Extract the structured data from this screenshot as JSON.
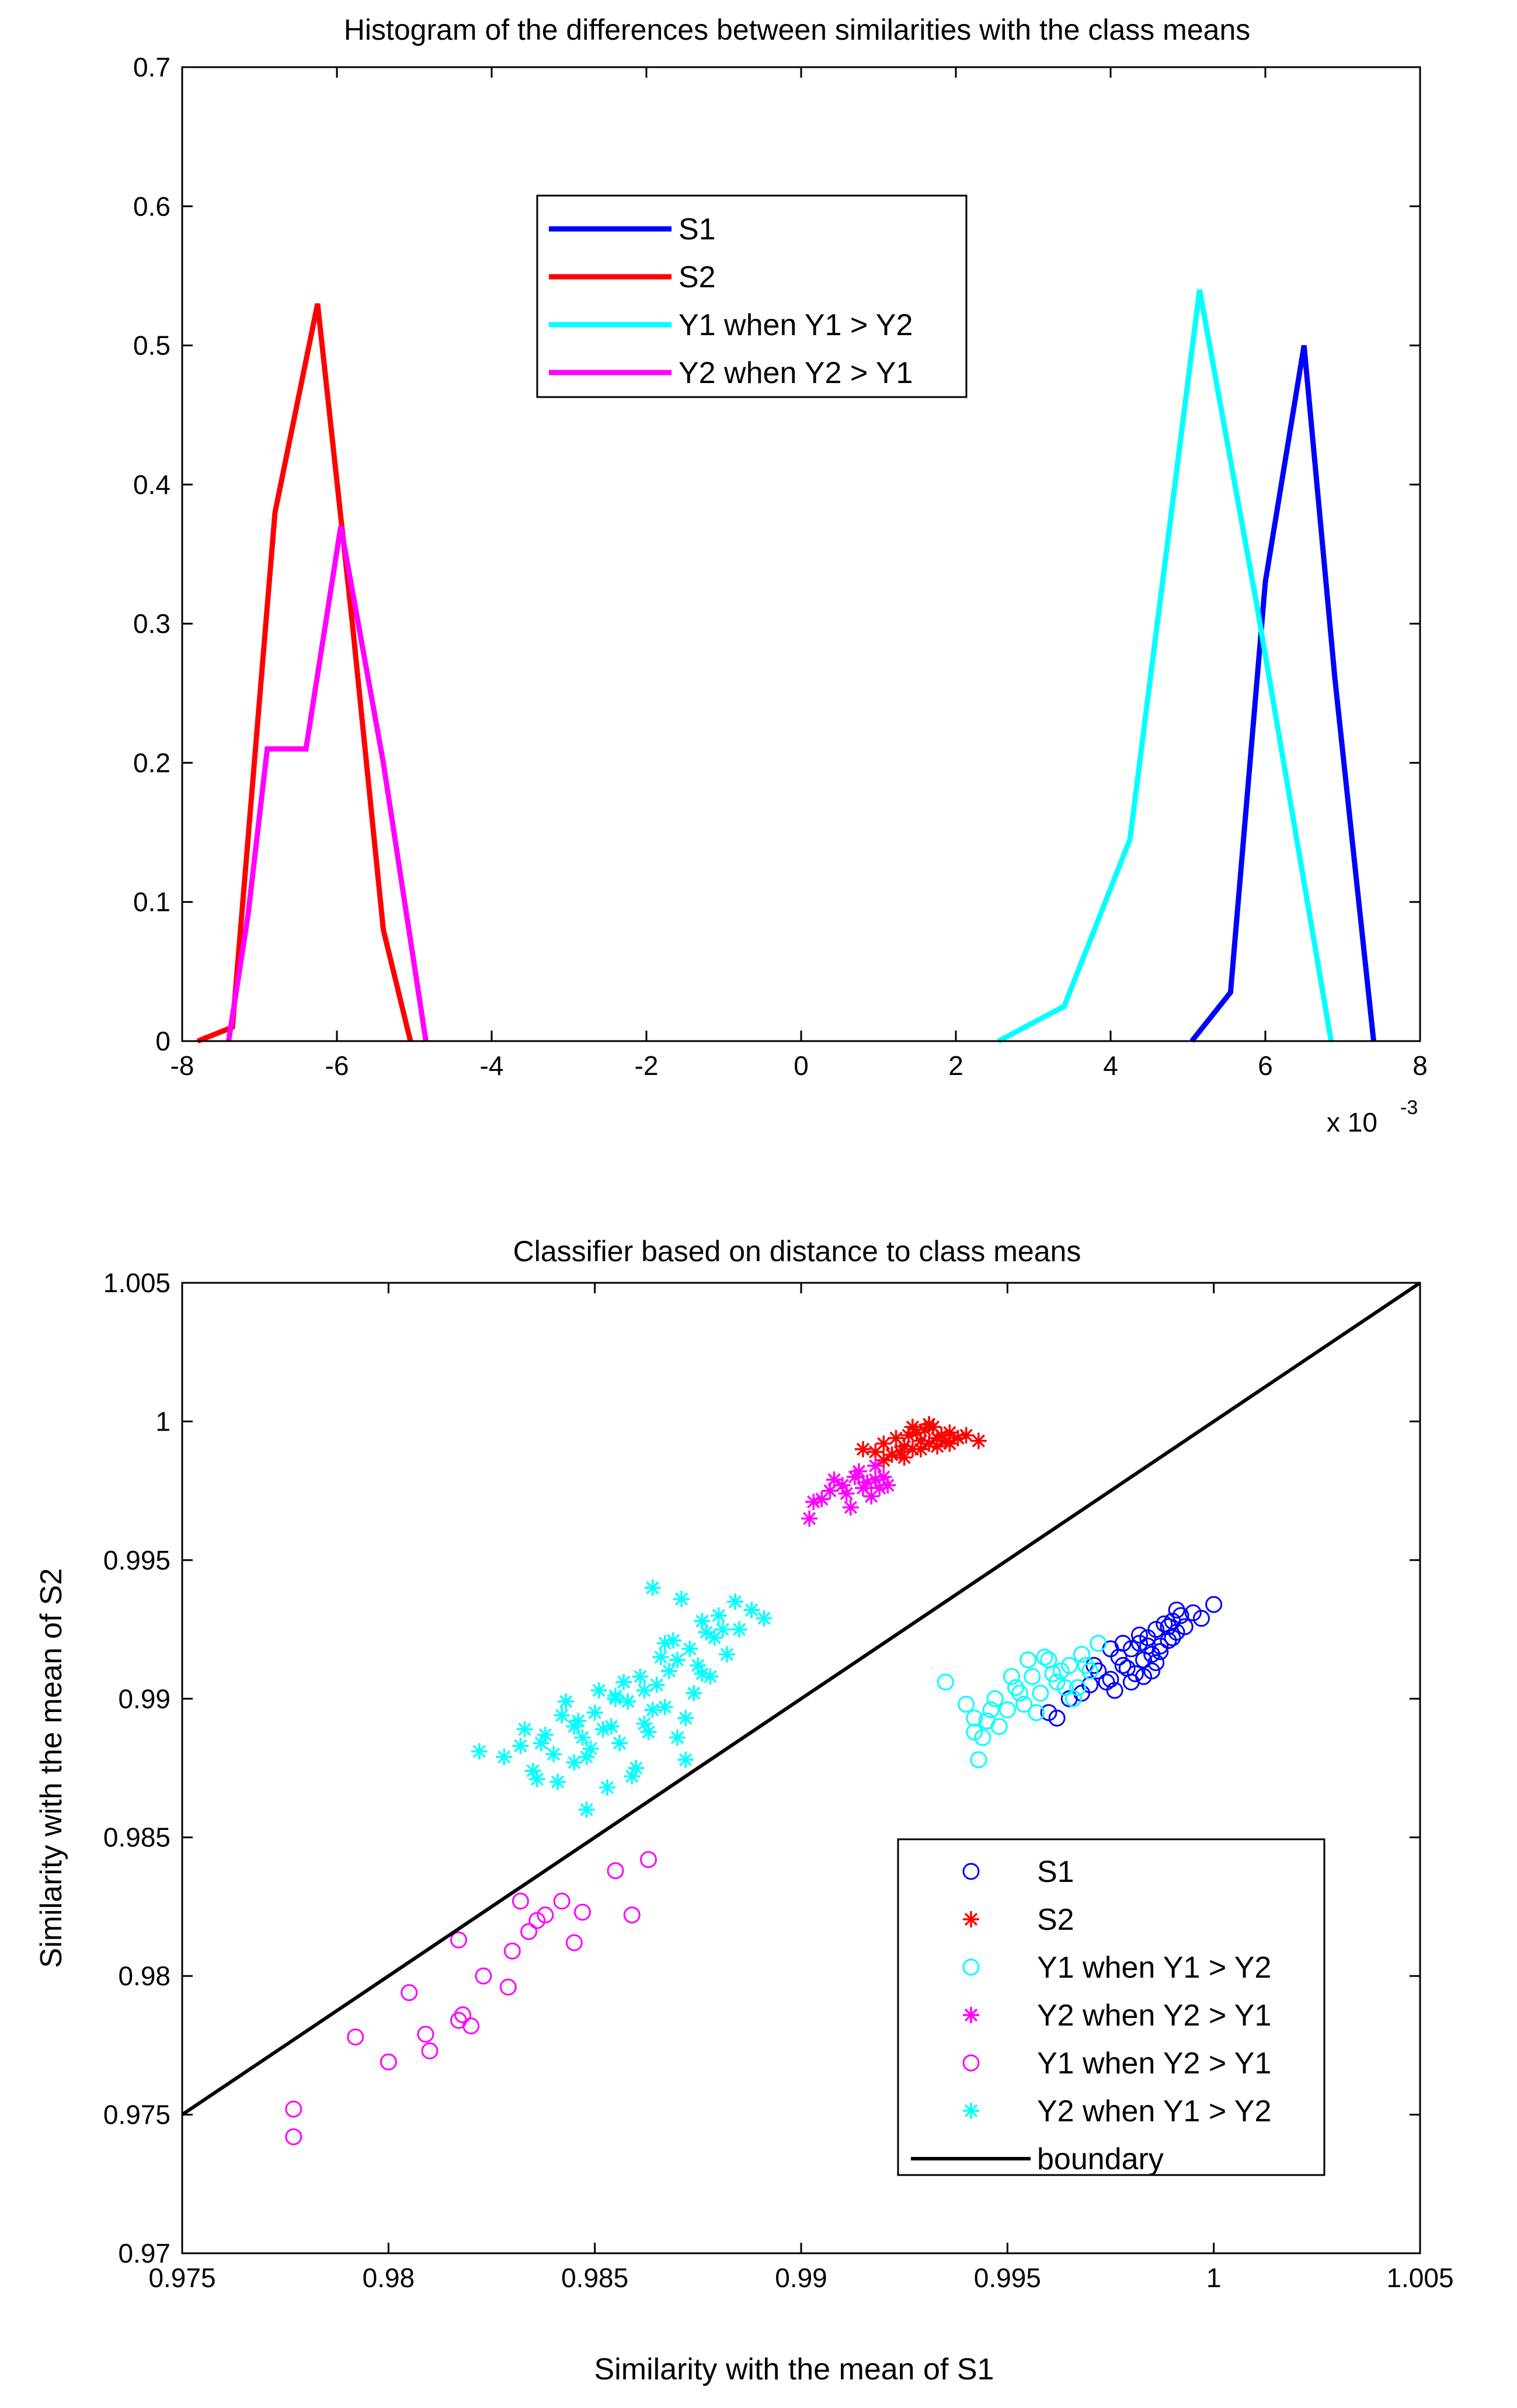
{
  "figure": {
    "background": "#ffffff"
  },
  "chart_data": [
    {
      "type": "line",
      "title": "Histogram of the differences between similarities with the class means",
      "xlabel": "",
      "ylabel": "",
      "x_exponent_label": "x 10",
      "x_exponent_power": "-3",
      "xlim": [
        -8,
        8
      ],
      "ylim": [
        0,
        0.7
      ],
      "xticks": [
        "-8",
        "-6",
        "-4",
        "-2",
        "0",
        "2",
        "4",
        "6",
        "8"
      ],
      "xtick_values": [
        -8,
        -6,
        -4,
        -2,
        0,
        2,
        4,
        6,
        8
      ],
      "yticks": [
        "0",
        "0.1",
        "0.2",
        "0.3",
        "0.4",
        "0.5",
        "0.6",
        "0.7"
      ],
      "ytick_values": [
        0,
        0.1,
        0.2,
        0.3,
        0.4,
        0.5,
        0.6,
        0.7
      ],
      "legend_position": "upper-center",
      "series": [
        {
          "name": "S1",
          "color": "#0000ff",
          "x": [
            5.05,
            5.55,
            6.0,
            6.5,
            6.9,
            7.4
          ],
          "y": [
            0.0,
            0.035,
            0.33,
            0.5,
            0.26,
            0.0
          ]
        },
        {
          "name": "S2",
          "color": "#ff0000",
          "x": [
            -7.8,
            -7.35,
            -6.8,
            -6.25,
            -5.8,
            -5.4,
            -5.05
          ],
          "y": [
            0.0,
            0.01,
            0.38,
            0.53,
            0.3,
            0.08,
            0.0
          ]
        },
        {
          "name": "Y1 when Y1 > Y2",
          "color": "#00ffff",
          "x": [
            2.55,
            3.4,
            4.25,
            5.15,
            5.9,
            6.85
          ],
          "y": [
            0.0,
            0.025,
            0.145,
            0.54,
            0.31,
            0.0
          ]
        },
        {
          "name": "Y2 when Y2 > Y1",
          "color": "#ff00ff",
          "x": [
            -7.4,
            -7.15,
            -6.9,
            -6.4,
            -5.95,
            -5.4,
            -4.85
          ],
          "y": [
            0.0,
            0.09,
            0.21,
            0.21,
            0.37,
            0.2,
            0.0
          ]
        }
      ]
    },
    {
      "type": "scatter",
      "title": "Classifier based on distance to class means",
      "xlabel": "Similarity with the mean of S1",
      "ylabel": "Similarity with the mean of S2",
      "xlim": [
        0.975,
        1.005
      ],
      "ylim": [
        0.97,
        1.005
      ],
      "xticks": [
        "0.975",
        "0.98",
        "0.985",
        "0.99",
        "0.995",
        "1",
        "1.005"
      ],
      "xtick_values": [
        0.975,
        0.98,
        0.985,
        0.99,
        0.995,
        1.0,
        1.005
      ],
      "yticks": [
        "0.97",
        "0.975",
        "0.98",
        "0.985",
        "0.99",
        "0.995",
        "1",
        "1.005"
      ],
      "ytick_values": [
        0.97,
        0.975,
        0.98,
        0.985,
        0.99,
        0.995,
        1.0,
        1.005
      ],
      "legend_position": "lower-right",
      "series": [
        {
          "name": "S1",
          "marker": "circle",
          "color": "#0000ff",
          "x": [
            0.996,
            0.9965,
            0.997,
            0.9972,
            0.9975,
            0.9977,
            0.9978,
            0.998,
            0.9981,
            0.9982,
            0.9983,
            0.9984,
            0.9985,
            0.9986,
            0.9987,
            0.9988,
            0.9989,
            0.999,
            0.9991,
            0.9992,
            0.9993,
            0.9995,
            0.9997,
            1.0,
            0.9976,
            0.9979,
            0.9983,
            0.9987,
            0.9974,
            0.9968,
            0.9962,
            0.9978,
            0.9982,
            0.9986,
            0.999,
            0.998,
            0.9985,
            0.9989,
            0.9971,
            0.9975,
            0.9991,
            0.9984
          ],
          "y": [
            0.9895,
            0.99,
            0.9905,
            0.991,
            0.9907,
            0.9915,
            0.9912,
            0.9918,
            0.9909,
            0.992,
            0.9914,
            0.9922,
            0.9916,
            0.9925,
            0.9919,
            0.9927,
            0.9921,
            0.9928,
            0.9924,
            0.993,
            0.9926,
            0.9931,
            0.9929,
            0.9934,
            0.9903,
            0.9911,
            0.9908,
            0.9917,
            0.9906,
            0.9902,
            0.9893,
            0.992,
            0.9923,
            0.9913,
            0.9922,
            0.9906,
            0.991,
            0.9926,
            0.9912,
            0.9918,
            0.9932,
            0.9919
          ]
        },
        {
          "name": "S2",
          "marker": "star",
          "color": "#ff0000",
          "x": [
            0.9915,
            0.9918,
            0.992,
            0.9922,
            0.9923,
            0.9925,
            0.9926,
            0.9927,
            0.9928,
            0.9929,
            0.993,
            0.9931,
            0.9932,
            0.9933,
            0.9934,
            0.9935,
            0.9936,
            0.9938,
            0.994,
            0.9943,
            0.992,
            0.9925,
            0.9929,
            0.9933,
            0.9927,
            0.9931,
            0.9924,
            0.9936
          ],
          "y": [
            0.999,
            0.9989,
            0.9992,
            0.9988,
            0.9994,
            0.9991,
            0.9995,
            0.999,
            0.9996,
            0.9993,
            0.9997,
            0.9992,
            0.9998,
            0.9994,
            0.9995,
            0.9993,
            0.9996,
            0.9994,
            0.9995,
            0.9993,
            0.9986,
            0.9987,
            0.999,
            0.9991,
            0.9998,
            0.9999,
            0.9989,
            0.9992
          ]
        },
        {
          "name": "Y1 when Y1 > Y2",
          "marker": "circle",
          "color": "#00ffff",
          "x": [
            0.9935,
            0.994,
            0.9942,
            0.9943,
            0.9945,
            0.9947,
            0.995,
            0.9952,
            0.9954,
            0.9956,
            0.9958,
            0.996,
            0.9962,
            0.9963,
            0.9965,
            0.9967,
            0.9968,
            0.997,
            0.9972,
            0.9942,
            0.9948,
            0.9953,
            0.9957,
            0.9961,
            0.9966,
            0.9944,
            0.9951,
            0.9959,
            0.9964,
            0.9955,
            0.9969,
            0.9946
          ],
          "y": [
            0.9906,
            0.9898,
            0.9888,
            0.9878,
            0.9892,
            0.99,
            0.9896,
            0.9904,
            0.9898,
            0.9908,
            0.9902,
            0.9914,
            0.9906,
            0.991,
            0.9912,
            0.9904,
            0.9916,
            0.991,
            0.992,
            0.9893,
            0.989,
            0.9902,
            0.9895,
            0.9909,
            0.99,
            0.9886,
            0.9908,
            0.9915,
            0.9904,
            0.9914,
            0.9912,
            0.9896
          ]
        },
        {
          "name": "Y2 when Y2 > Y1",
          "marker": "star",
          "color": "#ff00ff",
          "x": [
            0.9902,
            0.9905,
            0.9907,
            0.991,
            0.9912,
            0.9913,
            0.9915,
            0.9916,
            0.9917,
            0.9918,
            0.9919,
            0.992,
            0.9914,
            0.9911,
            0.9908,
            0.9903,
            0.9918,
            0.9921
          ],
          "y": [
            0.9965,
            0.9972,
            0.9975,
            0.9977,
            0.9969,
            0.998,
            0.9976,
            0.9978,
            0.9973,
            0.9979,
            0.9976,
            0.998,
            0.9982,
            0.9974,
            0.9979,
            0.9971,
            0.9984,
            0.9977
          ]
        },
        {
          "name": "Y1 when Y2 > Y1",
          "marker": "circle",
          "color": "#ff00ff",
          "x": [
            0.9777,
            0.9777,
            0.9792,
            0.98,
            0.9805,
            0.9809,
            0.981,
            0.9817,
            0.9817,
            0.9818,
            0.982,
            0.9823,
            0.9829,
            0.983,
            0.9832,
            0.9834,
            0.9836,
            0.9838,
            0.9842,
            0.9845,
            0.9847,
            0.9855,
            0.9859,
            0.9863
          ],
          "y": [
            0.9752,
            0.9742,
            0.9778,
            0.9769,
            0.9794,
            0.9779,
            0.9773,
            0.9784,
            0.9813,
            0.9786,
            0.9782,
            0.98,
            0.9796,
            0.9809,
            0.9827,
            0.9816,
            0.982,
            0.9822,
            0.9827,
            0.9812,
            0.9823,
            0.9838,
            0.9822,
            0.9842
          ]
        },
        {
          "name": "Y2 when Y1 > Y2",
          "marker": "star",
          "color": "#00ffff",
          "x": [
            0.9822,
            0.9828,
            0.9832,
            0.9835,
            0.9838,
            0.984,
            0.9842,
            0.9845,
            0.9847,
            0.9848,
            0.985,
            0.9852,
            0.9853,
            0.9855,
            0.9856,
            0.9858,
            0.986,
            0.9862,
            0.9863,
            0.9865,
            0.9867,
            0.9868,
            0.987,
            0.9872,
            0.9873,
            0.9875,
            0.9877,
            0.9878,
            0.988,
            0.9882,
            0.9884,
            0.9885,
            0.9888,
            0.9891,
            0.9833,
            0.9837,
            0.9843,
            0.9846,
            0.9851,
            0.9854,
            0.9857,
            0.9861,
            0.9864,
            0.9866,
            0.9869,
            0.9871,
            0.9874,
            0.9876,
            0.9879,
            0.9836,
            0.9841,
            0.9849,
            0.9859,
            0.9864,
            0.987,
            0.9876,
            0.9881,
            0.9845,
            0.9855,
            0.9848,
            0.9862,
            0.9867,
            0.9872
          ],
          "y": [
            0.9881,
            0.9879,
            0.9883,
            0.9874,
            0.9887,
            0.988,
            0.9894,
            0.9877,
            0.9886,
            0.986,
            0.9895,
            0.9889,
            0.9868,
            0.99,
            0.9884,
            0.9899,
            0.9875,
            0.9903,
            0.9888,
            0.9905,
            0.9897,
            0.991,
            0.9914,
            0.9893,
            0.9918,
            0.9912,
            0.9924,
            0.9908,
            0.993,
            0.9916,
            0.9935,
            0.9925,
            0.9932,
            0.9929,
            0.9889,
            0.9884,
            0.9899,
            0.9892,
            0.9903,
            0.989,
            0.9906,
            0.9908,
            0.994,
            0.9915,
            0.9921,
            0.9936,
            0.9902,
            0.9928,
            0.9922,
            0.9871,
            0.987,
            0.9882,
            0.9872,
            0.9896,
            0.9886,
            0.9909,
            0.9925,
            0.989,
            0.9901,
            0.9879,
            0.9891,
            0.992,
            0.9878
          ]
        },
        {
          "name": "boundary",
          "marker": "line",
          "color": "#000000",
          "x": [
            0.975,
            1.005
          ],
          "y": [
            0.975,
            1.005
          ]
        }
      ]
    }
  ]
}
